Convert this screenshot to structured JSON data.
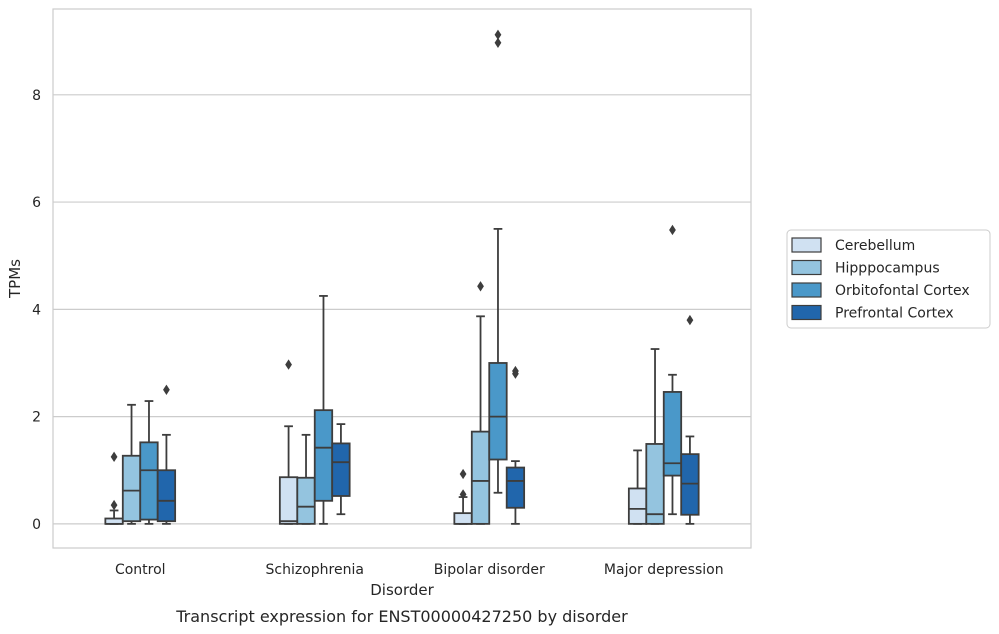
{
  "chart_data": {
    "type": "box",
    "caption": "Transcript expression for ENST00000427250 by disorder",
    "xlabel": "Disorder",
    "ylabel": "TPMs",
    "ylim": [
      -0.45,
      9.6
    ],
    "yticks": [
      0,
      2,
      4,
      6,
      8
    ],
    "grid": "horizontal",
    "legend_position": "right",
    "categories": [
      "Control",
      "Schizophrenia",
      "Bipolar disorder",
      "Major depression"
    ],
    "series": [
      {
        "name": "Cerebellum",
        "color": "#d0e1f2",
        "boxes": [
          {
            "whislo": 0.0,
            "q1": 0.0,
            "med": 0.0,
            "q3": 0.1,
            "whishi": 0.25,
            "fliers": [
              0.35,
              1.25
            ]
          },
          {
            "whislo": 0.0,
            "q1": 0.0,
            "med": 0.05,
            "q3": 0.87,
            "whishi": 1.82,
            "fliers": [
              2.97
            ]
          },
          {
            "whislo": 0.0,
            "q1": 0.0,
            "med": 0.0,
            "q3": 0.2,
            "whishi": 0.5,
            "fliers": [
              0.55,
              0.93
            ]
          },
          {
            "whislo": 0.0,
            "q1": 0.0,
            "med": 0.28,
            "q3": 0.66,
            "whishi": 1.37,
            "fliers": []
          }
        ]
      },
      {
        "name": "Hipppocampus",
        "color": "#94c4df",
        "boxes": [
          {
            "whislo": 0.0,
            "q1": 0.05,
            "med": 0.62,
            "q3": 1.27,
            "whishi": 2.22,
            "fliers": []
          },
          {
            "whislo": 0.0,
            "q1": 0.0,
            "med": 0.32,
            "q3": 0.86,
            "whishi": 1.66,
            "fliers": []
          },
          {
            "whislo": 0.0,
            "q1": 0.0,
            "med": 0.8,
            "q3": 1.72,
            "whishi": 3.87,
            "fliers": [
              4.43
            ]
          },
          {
            "whislo": 0.0,
            "q1": 0.0,
            "med": 0.18,
            "q3": 1.49,
            "whishi": 3.26,
            "fliers": []
          }
        ]
      },
      {
        "name": "Orbitofontal Cortex",
        "color": "#4a98c9",
        "boxes": [
          {
            "whislo": 0.0,
            "q1": 0.08,
            "med": 1.0,
            "q3": 1.52,
            "whishi": 2.29,
            "fliers": []
          },
          {
            "whislo": 0.0,
            "q1": 0.43,
            "med": 1.42,
            "q3": 2.12,
            "whishi": 4.25,
            "fliers": []
          },
          {
            "whislo": 0.58,
            "q1": 1.2,
            "med": 2.0,
            "q3": 3.0,
            "whishi": 5.5,
            "fliers": [
              8.97,
              9.12
            ]
          },
          {
            "whislo": 0.18,
            "q1": 0.9,
            "med": 1.13,
            "q3": 2.46,
            "whishi": 2.78,
            "fliers": [
              5.48
            ]
          }
        ]
      },
      {
        "name": "Prefrontal Cortex",
        "color": "#2166ac",
        "boxes": [
          {
            "whislo": 0.0,
            "q1": 0.05,
            "med": 0.43,
            "q3": 1.0,
            "whishi": 1.66,
            "fliers": [
              2.5
            ]
          },
          {
            "whislo": 0.18,
            "q1": 0.52,
            "med": 1.15,
            "q3": 1.5,
            "whishi": 1.86,
            "fliers": []
          },
          {
            "whislo": 0.0,
            "q1": 0.3,
            "med": 0.8,
            "q3": 1.05,
            "whishi": 1.17,
            "fliers": [
              2.8,
              2.85
            ]
          },
          {
            "whislo": 0.0,
            "q1": 0.17,
            "med": 0.75,
            "q3": 1.3,
            "whishi": 1.63,
            "fliers": [
              3.8
            ]
          }
        ]
      }
    ]
  }
}
